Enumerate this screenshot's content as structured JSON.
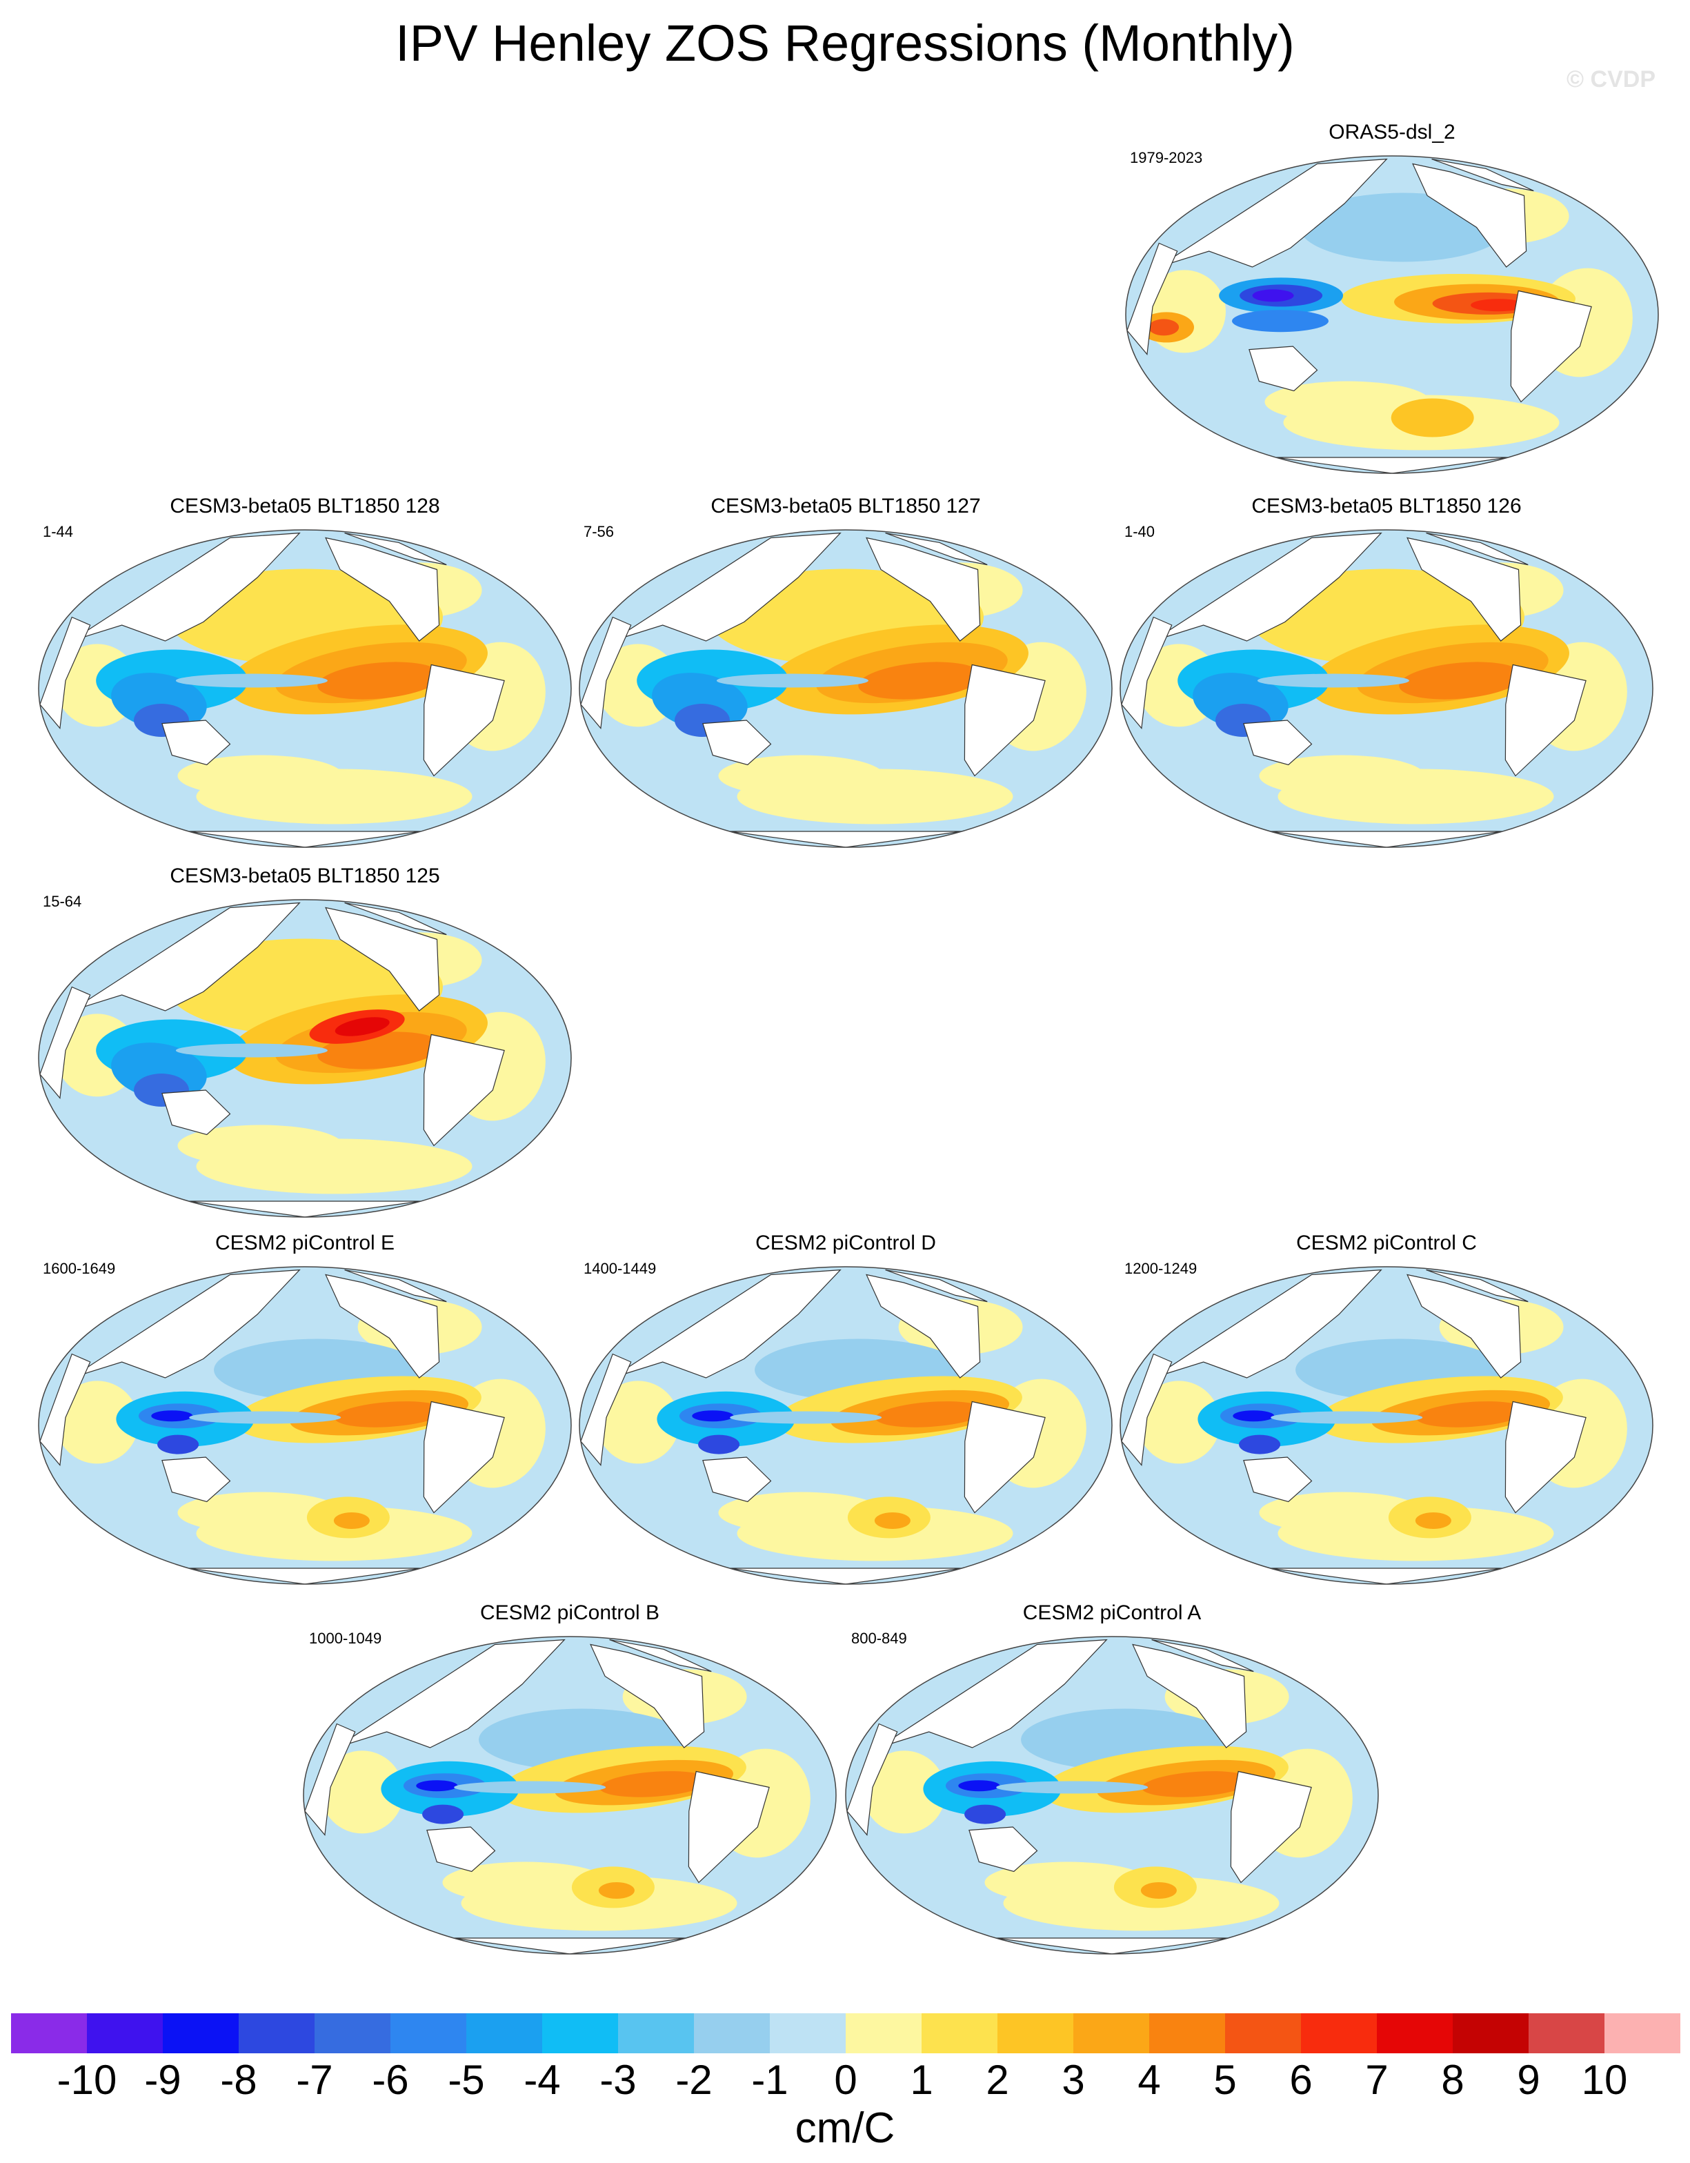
{
  "title": "IPV Henley ZOS Regressions (Monthly)",
  "watermark": "© CVDP",
  "panels": [
    {
      "title": "ORAS5-dsl_2",
      "period": "1979-2023",
      "pattern": "obs"
    },
    {
      "title": "CESM3-beta05 BLT1850 128",
      "period": "1-44",
      "pattern": "cesm3"
    },
    {
      "title": "CESM3-beta05 BLT1850 127",
      "period": "7-56",
      "pattern": "cesm3"
    },
    {
      "title": "CESM3-beta05 BLT1850 126",
      "period": "1-40",
      "pattern": "cesm3"
    },
    {
      "title": "CESM3-beta05 BLT1850 125",
      "period": "15-64",
      "pattern": "cesm3strong"
    },
    {
      "title": "CESM2 piControl E",
      "period": "1600-1649",
      "pattern": "cesm2"
    },
    {
      "title": "CESM2 piControl D",
      "period": "1400-1449",
      "pattern": "cesm2"
    },
    {
      "title": "CESM2 piControl C",
      "period": "1200-1249",
      "pattern": "cesm2"
    },
    {
      "title": "CESM2 piControl B",
      "period": "1000-1049",
      "pattern": "cesm2"
    },
    {
      "title": "CESM2 piControl A",
      "period": "800-849",
      "pattern": "cesm2"
    }
  ],
  "colorbar": {
    "label": "cm/C",
    "ticks": [
      "-10",
      "-9",
      "-8",
      "-7",
      "-6",
      "-5",
      "-4",
      "-3",
      "-2",
      "-1",
      "0",
      "1",
      "2",
      "3",
      "4",
      "5",
      "6",
      "7",
      "8",
      "9",
      "10"
    ],
    "colors": [
      "#8a2be8",
      "#3f12ee",
      "#0b12f5",
      "#2d48e0",
      "#366ce0",
      "#2e86f0",
      "#1ba0f0",
      "#10bdf5",
      "#58c4f0",
      "#96cfee",
      "#bee2f4",
      "#fdf7a0",
      "#fde24e",
      "#fdc525",
      "#fba717",
      "#f98310",
      "#f45514",
      "#f82c0d",
      "#e50606",
      "#c40303",
      "#d84646",
      "#fcb1b1"
    ]
  }
}
